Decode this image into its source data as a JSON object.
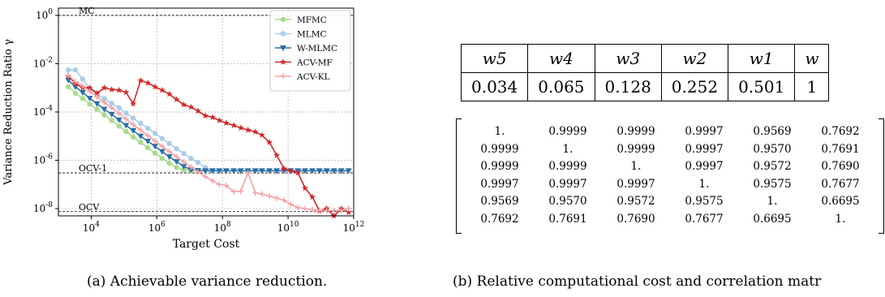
{
  "chart_data": {
    "type": "line",
    "xlabel": "Target Cost",
    "ylabel": "Variance Reduction Ratio γ",
    "x_scale": "log",
    "y_scale": "log",
    "xlim": [
      1000,
      1000000000000.0
    ],
    "ylim": [
      5e-09,
      2
    ],
    "grid": true,
    "legend_position": "top-right",
    "x_ticks": [
      {
        "value": 10000,
        "label": "10^4"
      },
      {
        "value": 1000000,
        "label": "10^6"
      },
      {
        "value": 100000000,
        "label": "10^8"
      },
      {
        "value": 10000000000,
        "label": "10^10"
      },
      {
        "value": 1000000000000,
        "label": "10^12"
      }
    ],
    "y_ticks": [
      {
        "value": 1,
        "label": "10^0"
      },
      {
        "value": 0.01,
        "label": "10^-2"
      },
      {
        "value": 0.0001,
        "label": "10^-4"
      },
      {
        "value": 1e-06,
        "label": "10^-6"
      },
      {
        "value": 1e-08,
        "label": "10^-8"
      }
    ],
    "reference_lines": [
      {
        "label": "MC",
        "y": 1
      },
      {
        "label": "OCV-1",
        "y": 3e-07
      },
      {
        "label": "OCV",
        "y": 7.5e-09
      }
    ],
    "series": [
      {
        "name": "MFMC",
        "color": "#a6dc8c",
        "marker": "circle",
        "x": [
          2000,
          3300,
          5500,
          9000,
          15000,
          25000,
          42000,
          70000,
          115000,
          190000,
          320000,
          530000,
          880000,
          1450000,
          2400000,
          4000000,
          6600000,
          11000000
        ],
        "y": [
          0.0011,
          0.0006,
          0.00036,
          0.00021,
          0.00013,
          7.5e-05,
          4.5e-05,
          2.6e-05,
          1.55e-05,
          9.2e-06,
          5.5e-06,
          3.3e-06,
          2e-06,
          1.2e-06,
          7.5e-07,
          5e-07,
          4e-07,
          3.7e-07
        ]
      },
      {
        "name": "MLMC",
        "color": "#a9cde8",
        "marker": "circle",
        "x": [
          2000,
          3300,
          5500,
          9000,
          15000,
          25000,
          42000,
          70000,
          115000,
          190000,
          320000,
          530000,
          880000,
          1450000,
          2400000,
          4000000,
          6600000,
          11000000,
          18000000,
          30000000,
          50000000
        ],
        "y": [
          0.0055,
          0.0055,
          0.0023,
          0.00095,
          0.00055,
          0.00036,
          0.00023,
          0.00015,
          9e-05,
          5.5e-05,
          3.4e-05,
          2.1e-05,
          1.3e-05,
          8e-06,
          5e-06,
          3e-06,
          1.9e-06,
          1.2e-06,
          8e-07,
          5e-07,
          3.7e-07
        ]
      },
      {
        "name": "W-MLMC",
        "color": "#2a6fa6",
        "marker": "triangle-down",
        "x": [
          2000,
          3300,
          5500,
          9000,
          15000,
          25000,
          42000,
          70000,
          115000,
          190000,
          320000,
          530000,
          880000,
          1450000,
          2400000,
          4000000,
          6600000,
          11000000,
          18000000,
          30000000,
          50000000,
          80000000,
          130000000,
          220000000,
          360000000,
          600000000,
          1000000000,
          1600000000,
          2700000000,
          4500000000,
          7500000000,
          12000000000,
          20000000000,
          33000000000,
          55000000000,
          90000000000,
          150000000000,
          250000000000,
          420000000000,
          700000000000
        ],
        "y": [
          0.0021,
          0.0011,
          0.00064,
          0.00037,
          0.00022,
          0.00013,
          8e-05,
          4.7e-05,
          2.8e-05,
          1.7e-05,
          1e-05,
          6.2e-06,
          3.8e-06,
          2.3e-06,
          1.4e-06,
          8.8e-07,
          5.6e-07,
          4e-07,
          3.8e-07,
          3.7e-07,
          3.7e-07,
          3.7e-07,
          3.7e-07,
          3.7e-07,
          3.7e-07,
          3.7e-07,
          3.7e-07,
          3.7e-07,
          3.7e-07,
          3.7e-07,
          3.7e-07,
          3.7e-07,
          3.7e-07,
          3.7e-07,
          3.7e-07,
          3.7e-07,
          3.7e-07,
          3.7e-07,
          3.7e-07,
          3.7e-07
        ]
      },
      {
        "name": "ACV-MF",
        "color": "#d62728",
        "marker": "star",
        "x": [
          2000,
          3300,
          5500,
          9000,
          15000,
          25000,
          42000,
          70000,
          115000,
          190000,
          320000,
          530000,
          880000,
          1450000,
          2400000,
          4000000,
          6600000,
          11000000,
          18000000,
          30000000,
          50000000,
          80000000,
          130000000,
          220000000,
          360000000,
          600000000,
          1000000000,
          1600000000,
          2700000000,
          4500000000,
          7500000000,
          12000000000,
          20000000000,
          33000000000,
          55000000000,
          90000000000,
          150000000000,
          250000000000,
          420000000000,
          700000000000
        ],
        "y": [
          0.003,
          0.0015,
          0.001,
          0.001,
          0.0006,
          0.001,
          0.00085,
          0.0008,
          0.00065,
          0.00022,
          0.002,
          0.0016,
          0.0011,
          0.0008,
          0.00055,
          0.00033,
          0.0002,
          0.00016,
          0.00011,
          7e-05,
          6e-05,
          4.5e-05,
          3.5e-05,
          2.8e-05,
          2.2e-05,
          1.8e-05,
          1.5e-05,
          1.1e-05,
          5.5e-06,
          1.6e-06,
          4.5e-07,
          3.6e-07,
          3e-07,
          7e-08,
          3e-08,
          8e-09,
          1e-08,
          5e-09,
          1e-08,
          7e-09
        ]
      },
      {
        "name": "ACV-KL",
        "color": "#f4a3a6",
        "marker": "plus",
        "x": [
          2000,
          3300,
          5500,
          9000,
          15000,
          25000,
          42000,
          70000,
          115000,
          190000,
          320000,
          530000,
          880000,
          1450000,
          2400000,
          4000000,
          6600000,
          11000000,
          18000000,
          30000000,
          50000000,
          80000000,
          130000000,
          220000000,
          360000000,
          600000000,
          1000000000,
          1600000000,
          2700000000,
          4500000000,
          7500000000,
          12000000000,
          20000000000,
          33000000000,
          55000000000,
          90000000000,
          150000000000,
          250000000000,
          420000000000,
          700000000000
        ],
        "y": [
          0.0033,
          0.0018,
          0.0012,
          0.0007,
          0.00042,
          0.00025,
          0.00015,
          8.8e-05,
          5.2e-05,
          3e-05,
          1.8e-05,
          1.05e-05,
          6.3e-06,
          3.8e-06,
          2.3e-06,
          1.4e-06,
          8.5e-07,
          5.2e-07,
          3.3e-07,
          2.1e-07,
          1.4e-07,
          1e-07,
          9e-08,
          5e-08,
          5.2e-08,
          3e-07,
          4.5e-08,
          4e-08,
          3.3e-08,
          2.7e-08,
          2.2e-08,
          1.5e-08,
          1.1e-08,
          1e-08,
          9e-09,
          8.5e-09,
          8.3e-09,
          8.2e-09,
          8.5e-09,
          1e-08
        ]
      }
    ]
  },
  "captions": {
    "a": "(a) Achievable variance reduction.",
    "b": "(b) Relative computational cost and correlation matr"
  },
  "cost_table": {
    "headers": [
      "w5",
      "w4",
      "w3",
      "w2",
      "w1",
      "w"
    ],
    "values": [
      "0.034",
      "0.065",
      "0.128",
      "0.252",
      "0.501",
      "1"
    ]
  },
  "correlation_matrix": [
    [
      "1.",
      "0.9999",
      "0.9999",
      "0.9997",
      "0.9569",
      "0.7692"
    ],
    [
      "0.9999",
      "1.",
      "0.9999",
      "0.9997",
      "0.9570",
      "0.7691"
    ],
    [
      "0.9999",
      "0.9999",
      "1.",
      "0.9997",
      "0.9572",
      "0.7690"
    ],
    [
      "0.9997",
      "0.9997",
      "0.9997",
      "1.",
      "0.9575",
      "0.7677"
    ],
    [
      "0.9569",
      "0.9570",
      "0.9572",
      "0.9575",
      "1.",
      "0.6695"
    ],
    [
      "0.7692",
      "0.7691",
      "0.7690",
      "0.7677",
      "0.6695",
      "1."
    ]
  ]
}
